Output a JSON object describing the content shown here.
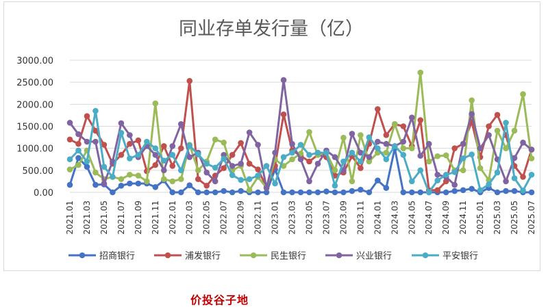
{
  "chart_data": {
    "type": "line",
    "title": "同业存单发行量（亿）",
    "xlabel": "",
    "ylabel": "",
    "ylim": [
      0,
      3000
    ],
    "yticks": [
      "0.00",
      "500.00",
      "1000.00",
      "1500.00",
      "2000.00",
      "2500.00",
      "3000.00"
    ],
    "grid": "horizontal",
    "legend": "bottom",
    "x": [
      "2021.01",
      "2021.02",
      "2021.03",
      "2021.04",
      "2021.05",
      "2021.06",
      "2021.07",
      "2021.08",
      "2021.09",
      "2021.10",
      "2021.11",
      "2021.12",
      "2022.01",
      "2022.02",
      "2022.03",
      "2022.04",
      "2022.05",
      "2022.06",
      "2022.07",
      "2022.08",
      "2022.09",
      "2022.10",
      "2022.11",
      "2022.12",
      "2023.01",
      "2023.02",
      "2023.03",
      "2023.04",
      "2023.05",
      "2023.06",
      "2023.07",
      "2023.08",
      "2023.09",
      "2023.10",
      "2023.11",
      "2023.12",
      "2024.01",
      "2024.02",
      "2024.03",
      "2024.04",
      "2024.05",
      "2024.06",
      "2024.07",
      "2024.08",
      "2024.09",
      "2024.10",
      "2024.11",
      "2024.12",
      "2025.01",
      "2025.02",
      "2025.03",
      "2025.04",
      "2025.05",
      "2025.06",
      "2025.07"
    ],
    "x_tick_labels": [
      "2021.01",
      "2021.03",
      "2021.05",
      "2021.07",
      "2021.09",
      "2021.11",
      "2022.01",
      "2022.03",
      "2022.05",
      "2022.07",
      "2022.09",
      "2022.11",
      "2023.01",
      "2023.03",
      "2023.05",
      "2023.07",
      "2023.09",
      "2023.11",
      "2024.01",
      "2024.03",
      "2024.05",
      "2024.07",
      "2024.09",
      "2024.11",
      "2025.01",
      "2025.03",
      "2025.05",
      "2025.07"
    ],
    "series": [
      {
        "name": "招商银行",
        "color": "#4472c4",
        "values": [
          170,
          780,
          580,
          170,
          180,
          0,
          150,
          200,
          200,
          200,
          120,
          270,
          0,
          0,
          160,
          0,
          0,
          0,
          30,
          0,
          30,
          0,
          0,
          0,
          520,
          0,
          0,
          0,
          0,
          0,
          20,
          0,
          0,
          30,
          60,
          0,
          270,
          100,
          1000,
          0,
          0,
          0,
          0,
          0,
          0,
          30,
          50,
          80,
          0,
          100,
          0,
          30,
          30,
          0,
          0
        ]
      },
      {
        "name": "浦发银行",
        "color": "#c0504d",
        "values": [
          1200,
          1100,
          1730,
          1400,
          1080,
          650,
          850,
          1100,
          1180,
          480,
          620,
          1050,
          600,
          1000,
          2530,
          300,
          150,
          380,
          550,
          850,
          1120,
          650,
          520,
          120,
          600,
          1770,
          950,
          830,
          700,
          850,
          800,
          380,
          450,
          820,
          550,
          1100,
          1890,
          1300,
          1550,
          1500,
          1050,
          1640,
          50,
          50,
          250,
          1000,
          1100,
          1600,
          800,
          1500,
          1760,
          1300,
          600,
          350,
          970
        ]
      },
      {
        "name": "民生银行",
        "color": "#9bbb59",
        "values": [
          520,
          620,
          950,
          450,
          300,
          350,
          300,
          400,
          380,
          250,
          2020,
          300,
          250,
          300,
          1080,
          500,
          700,
          1200,
          1130,
          500,
          600,
          50,
          350,
          100,
          750,
          600,
          750,
          880,
          1370,
          850,
          900,
          500,
          1240,
          250,
          1300,
          700,
          900,
          900,
          1550,
          1000,
          1000,
          2720,
          700,
          820,
          840,
          500,
          500,
          2090,
          550,
          280,
          1400,
          1000,
          1400,
          2230,
          770
        ]
      },
      {
        "name": "兴业银行",
        "color": "#8064a2",
        "values": [
          1580,
          1320,
          1150,
          1150,
          200,
          700,
          1570,
          1300,
          800,
          1050,
          850,
          500,
          1050,
          1550,
          800,
          900,
          450,
          250,
          850,
          600,
          650,
          1360,
          1080,
          100,
          900,
          2550,
          1100,
          750,
          250,
          650,
          950,
          800,
          500,
          1330,
          900,
          800,
          1150,
          1100,
          1050,
          1150,
          1700,
          830,
          1100,
          400,
          350,
          170,
          1100,
          1780,
          1000,
          1300,
          750,
          250,
          780,
          1130,
          970
        ]
      },
      {
        "name": "平安银行",
        "color": "#4bacc6",
        "values": [
          750,
          950,
          700,
          1850,
          580,
          350,
          1350,
          770,
          850,
          1150,
          1000,
          720,
          850,
          500,
          1060,
          860,
          650,
          560,
          760,
          390,
          280,
          300,
          380,
          600,
          200,
          800,
          900,
          1080,
          850,
          900,
          900,
          150,
          700,
          900,
          700,
          1250,
          1000,
          750,
          1050,
          850,
          250,
          500,
          0,
          270,
          400,
          460,
          770,
          860,
          50,
          180,
          450,
          1580,
          320,
          40,
          400
        ]
      }
    ]
  },
  "watermark": "价投谷子地"
}
